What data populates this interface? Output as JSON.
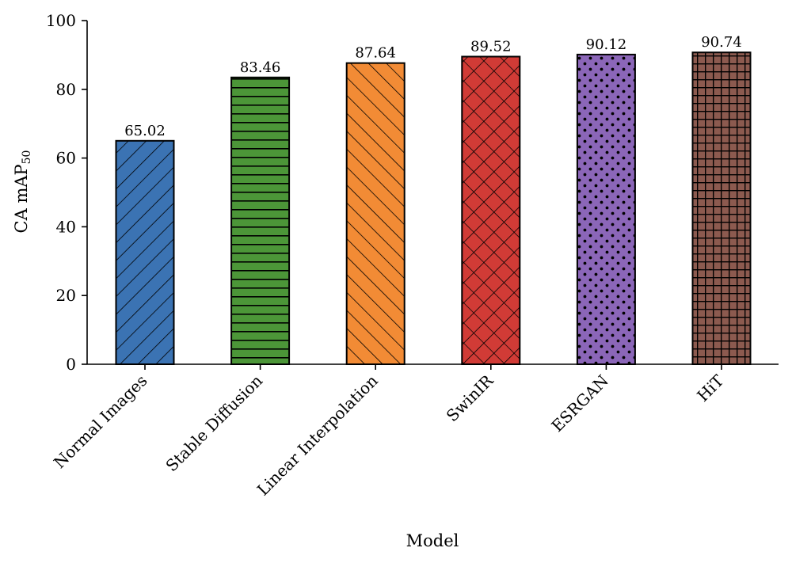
{
  "chart_data": {
    "type": "bar",
    "title": "",
    "xlabel": "Model",
    "ylabel": "CA mAP",
    "ylabel_subscript": "50",
    "categories": [
      "Normal Images",
      "Stable Diffusion",
      "Linear Interpolation",
      "SwinIR",
      "ESRGAN",
      "HiT"
    ],
    "values": [
      65.02,
      83.46,
      87.64,
      89.52,
      90.12,
      90.74
    ],
    "value_labels": [
      "65.02",
      "83.46",
      "87.64",
      "89.52",
      "90.12",
      "90.74"
    ],
    "ylim": [
      0,
      100
    ],
    "yticks": [
      "0",
      "20",
      "40",
      "60",
      "80",
      "100"
    ],
    "ytick_values": [
      0,
      20,
      40,
      60,
      80,
      100
    ],
    "grid": false,
    "legend": "none",
    "colors": [
      "#3b73b3",
      "#4c9638",
      "#f28b35",
      "#d13b36",
      "#8b66b8",
      "#8c5a4f"
    ],
    "hatches": [
      "diagonal-up",
      "horizontal",
      "diagonal-down",
      "crosshatch",
      "dots",
      "grid"
    ]
  }
}
